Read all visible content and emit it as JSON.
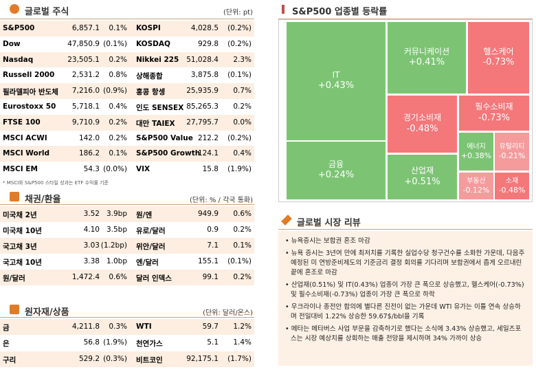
{
  "stocks": {
    "title": "글로벌 주식",
    "unit": "(단위: pt)",
    "note": "* MSCI와 S&P500 스타일 성과는 ETF 수익률 기준",
    "rows": [
      [
        "S&P500",
        "6,857.1",
        "0.1%",
        "KOSPI",
        "4,028.5",
        "(0.2%)"
      ],
      [
        "Dow",
        "47,850.9",
        "(0.1%)",
        "KOSDAQ",
        "929.8",
        "(0.2%)"
      ],
      [
        "Nasdaq",
        "23,505.1",
        "0.2%",
        "Nikkei 225",
        "51,028.4",
        "2.3%"
      ],
      [
        "Russell 2000",
        "2,531.2",
        "0.8%",
        "상해종합",
        "3,875.8",
        "(0.1%)"
      ],
      [
        "필라델피아 반도체",
        "7,216.0",
        "(0.9%)",
        "홍콩 항셍",
        "25,935.9",
        "0.7%"
      ],
      [
        "Eurostoxx 50",
        "5,718.1",
        "0.4%",
        "인도 SENSEX",
        "85,265.3",
        "0.2%"
      ],
      [
        "FTSE 100",
        "9,710.9",
        "0.2%",
        "대만 TAIEX",
        "27,795.7",
        "0.0%"
      ],
      [
        "MSCI ACWI",
        "142.0",
        "0.2%",
        "S&P500 Value",
        "212.2",
        "(0.2%)"
      ],
      [
        "MSCI World",
        "186.2",
        "0.1%",
        "S&P500 Growth",
        "124.1",
        "0.4%"
      ],
      [
        "MSCI EM",
        "54.3",
        "(0.0%)",
        "VIX",
        "15.8",
        "(1.9%)"
      ]
    ]
  },
  "bonds": {
    "title": "채권/환율",
    "unit": "(단위: % / 각국 통화)",
    "rows": [
      [
        "미국채 2년",
        "3.52",
        "3.9bp",
        "원/엔",
        "949.9",
        "0.6%"
      ],
      [
        "미국채 10년",
        "4.10",
        "3.5bp",
        "유로/달러",
        "0.9",
        "0.2%"
      ],
      [
        "국고채 3년",
        "3.03",
        "(1.2bp)",
        "위안/달러",
        "7.1",
        "0.1%"
      ],
      [
        "국고채 10년",
        "3.38",
        "1.0bp",
        "엔/달러",
        "155.1",
        "(0.1%)"
      ],
      [
        "원/달러",
        "1,472.4",
        "0.6%",
        "달러 인덱스",
        "99.1",
        "0.2%"
      ]
    ]
  },
  "commodities": {
    "title": "원자재/상품",
    "unit": "(단위: 달러/온스)",
    "rows": [
      [
        "금",
        "4,211.8",
        "0.3%",
        "WTI",
        "59.7",
        "1.2%"
      ],
      [
        "은",
        "56.8",
        "(1.9%)",
        "천연가스",
        "5.1",
        "1.4%"
      ],
      [
        "구리",
        "529.2",
        "(0.3%)",
        "비트코인",
        "92,175.1",
        "(1.7%)"
      ]
    ]
  },
  "sector": {
    "title": "S&P500 업종별 등락률",
    "cells": [
      {
        "label": "IT",
        "change": "+0.43%"
      },
      {
        "label": "금융",
        "change": "+0.24%"
      },
      {
        "label": "커뮤니케이션",
        "change": "+0.41%"
      },
      {
        "label": "헬스케어",
        "change": "-0.73%"
      },
      {
        "label": "경기소비재",
        "change": "-0.48%"
      },
      {
        "label": "필수소비재",
        "change": "-0.73%"
      },
      {
        "label": "산업재",
        "change": "+0.51%"
      },
      {
        "label": "에너지",
        "change": "+0.38%"
      },
      {
        "label": "유틸리티",
        "change": "-0.21%"
      },
      {
        "label": "부동산",
        "change": "-0.12%"
      },
      {
        "label": "소재",
        "change": "-0.48%"
      }
    ]
  },
  "review": {
    "title": "글로벌 시장 리뷰",
    "items": [
      "뉴욕증시는 보합권 혼조 마감",
      "뉴욕 증시는 3년여 만에 최저치를 기록한 실업수당 청구건수를 소화한 가운데, 다음주 예정된 미 연방준비제도의 기준금리 결정 회의를 기다리며 보합권에서 좁게 오르내린 끝에 혼조로 마감",
      "산업재(0.51%) 및 IT(0.43%) 업종이 가장 큰 폭으로 상승했고, 헬스케어(-0.73%) 및 필수소비재(-0.73%) 업종이 가장 큰 폭으로 하락",
      "우크라이나 종전안 합의에 별다른 진전이 없는 가운데 WTI 유가는 이틀 연속 상승하며 전일대비 1.22% 상승한 59.67$/bbl을 기록",
      "메타는 메타버스 사업 부문을 감축하기로 했다는 소식에 3.43% 상승했고, 세일즈포스는 시장 예상치를 상회하는 매출 전망을 제시하며 34% 가까이 상승"
    ]
  }
}
